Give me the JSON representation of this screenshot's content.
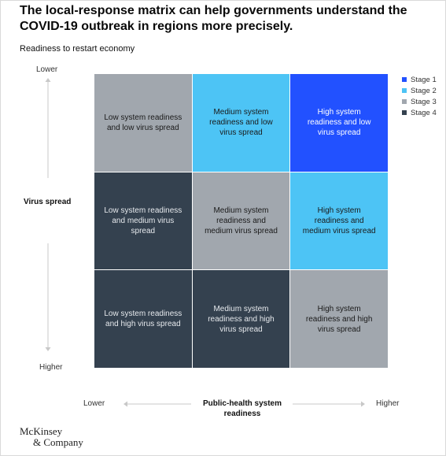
{
  "headline": "The local-response matrix can help governments understand the COVID-19 outbreak in regions more precisely.",
  "subtitle": "Readiness to restart economy",
  "y_axis": {
    "title": "Virus spread",
    "top_label": "Lower",
    "bottom_label": "Higher"
  },
  "x_axis": {
    "title": "Public-health system readiness",
    "left_label": "Lower",
    "right_label": "Higher"
  },
  "legend": [
    {
      "label": "Stage 1",
      "color": "#2251ff"
    },
    {
      "label": "Stage 2",
      "color": "#4dc4f5"
    },
    {
      "label": "Stage 3",
      "color": "#a1a7ae"
    },
    {
      "label": "Stage 4",
      "color": "#34414f"
    }
  ],
  "matrix": [
    {
      "text": "Low system readiness and low virus spread",
      "stage": 3
    },
    {
      "text": "Medium system readiness and low virus spread",
      "stage": 2
    },
    {
      "text": "High system readiness and low virus spread",
      "stage": 1
    },
    {
      "text": "Low system readiness and medium virus  spread",
      "stage": 4
    },
    {
      "text": "Medium system readiness and medium virus spread",
      "stage": 3
    },
    {
      "text": "High system readiness and medium virus spread",
      "stage": 2
    },
    {
      "text": "Low system readiness and high virus spread",
      "stage": 4
    },
    {
      "text": "Medium system readiness and high virus spread",
      "stage": 4
    },
    {
      "text": "High system readiness and high virus spread",
      "stage": 3
    }
  ],
  "logo": {
    "line1": "McKinsey",
    "line2": "& Company"
  }
}
